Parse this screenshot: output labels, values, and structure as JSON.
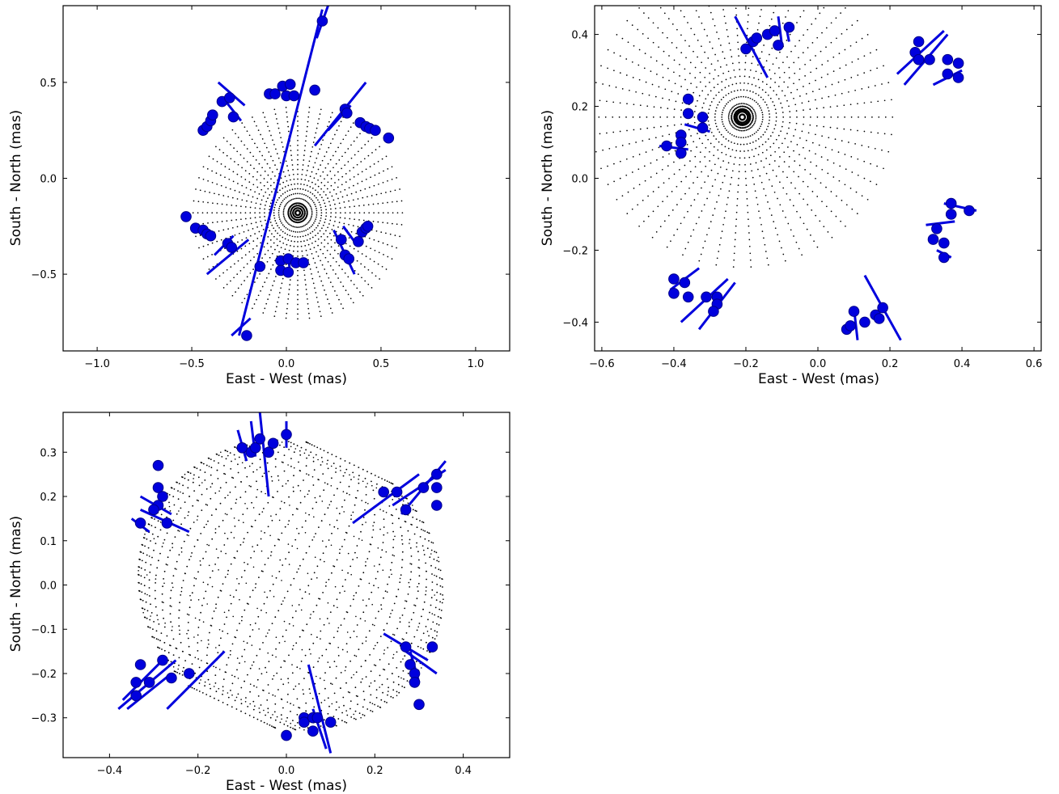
{
  "colors": {
    "observed": "#0000dd",
    "observed_edge": "#00008a",
    "model": "#000000",
    "axes": "#000000"
  },
  "chart_data": [
    {
      "type": "scatter",
      "xlabel": "East - West (mas)",
      "ylabel": "South - North (mas)",
      "xlim": [
        -1.18,
        1.18
      ],
      "ylim": [
        -0.9,
        0.9
      ],
      "xticks": [
        -1.0,
        -0.5,
        0.0,
        0.5,
        1.0
      ],
      "yticks": [
        -0.5,
        0.0,
        0.5
      ],
      "xtick_labels": [
        "−1.0",
        "−0.5",
        "0.0",
        "0.5",
        "1.0"
      ],
      "ytick_labels": [
        "−0.5",
        "0.0",
        "0.5"
      ],
      "grid": false,
      "model_center": [
        0.06,
        -0.18
      ],
      "model_radius": 0.57,
      "model_spokes": 56,
      "model_rings": 12,
      "model_core_radius": 0.05,
      "points": [
        [
          -0.53,
          -0.2
        ],
        [
          -0.48,
          -0.26
        ],
        [
          -0.44,
          -0.27
        ],
        [
          -0.42,
          -0.29
        ],
        [
          -0.4,
          -0.3
        ],
        [
          -0.31,
          -0.34
        ],
        [
          -0.29,
          -0.36
        ],
        [
          -0.44,
          0.25
        ],
        [
          -0.42,
          0.27
        ],
        [
          -0.4,
          0.3
        ],
        [
          -0.39,
          0.33
        ],
        [
          -0.34,
          0.4
        ],
        [
          -0.3,
          0.42
        ],
        [
          -0.28,
          0.32
        ],
        [
          -0.09,
          0.44
        ],
        [
          -0.06,
          0.44
        ],
        [
          -0.02,
          0.48
        ],
        [
          0.0,
          0.43
        ],
        [
          0.02,
          0.49
        ],
        [
          0.04,
          0.43
        ],
        [
          0.15,
          0.46
        ],
        [
          0.19,
          0.82
        ],
        [
          -0.14,
          -0.46
        ],
        [
          -0.21,
          -0.82
        ],
        [
          0.31,
          0.36
        ],
        [
          0.32,
          0.34
        ],
        [
          0.39,
          0.29
        ],
        [
          0.42,
          0.27
        ],
        [
          0.44,
          0.26
        ],
        [
          0.47,
          0.25
        ],
        [
          0.54,
          0.21
        ],
        [
          -0.03,
          -0.43
        ],
        [
          0.01,
          -0.42
        ],
        [
          0.05,
          -0.44
        ],
        [
          0.09,
          -0.44
        ],
        [
          -0.03,
          -0.48
        ],
        [
          0.01,
          -0.49
        ],
        [
          0.29,
          -0.32
        ],
        [
          0.31,
          -0.4
        ],
        [
          0.33,
          -0.42
        ],
        [
          0.38,
          -0.33
        ],
        [
          0.4,
          -0.28
        ],
        [
          0.42,
          -0.26
        ],
        [
          0.43,
          -0.25
        ]
      ],
      "error_bars": [
        [
          -0.36,
          0.5,
          -0.22,
          0.38
        ],
        [
          -0.32,
          0.4,
          -0.24,
          0.3
        ],
        [
          -0.42,
          -0.5,
          -0.2,
          -0.32
        ],
        [
          -0.38,
          -0.4,
          -0.28,
          -0.3
        ],
        [
          -0.25,
          -0.82,
          0.19,
          0.88
        ],
        [
          -0.29,
          -0.82,
          -0.19,
          -0.73
        ],
        [
          0.16,
          0.73,
          0.22,
          0.9
        ],
        [
          0.15,
          0.17,
          0.42,
          0.5
        ],
        [
          0.22,
          0.25,
          0.34,
          0.38
        ],
        [
          0.25,
          -0.27,
          0.36,
          -0.5
        ],
        [
          0.3,
          -0.25,
          0.36,
          -0.33
        ],
        [
          0.01,
          -0.4,
          0.02,
          -0.5
        ]
      ]
    },
    {
      "type": "scatter",
      "xlabel": "East - West (mas)",
      "ylabel": "South - North (mas)",
      "xlim": [
        -0.62,
        0.62
      ],
      "ylim": [
        -0.48,
        0.48
      ],
      "xticks": [
        -0.6,
        -0.4,
        -0.2,
        0.0,
        0.2,
        0.4,
        0.6
      ],
      "yticks": [
        -0.4,
        -0.2,
        0.0,
        0.2,
        0.4
      ],
      "xtick_labels": [
        "−0.6",
        "−0.4",
        "−0.2",
        "0.0",
        "0.2",
        "0.4",
        "0.6"
      ],
      "ytick_labels": [
        "−0.4",
        "−0.2",
        "0.0",
        "0.2",
        "0.4"
      ],
      "grid": false,
      "model_center": [
        -0.21,
        0.17
      ],
      "model_radius": 0.43,
      "model_spokes": 54,
      "model_rings": 14,
      "model_core_radius": 0.03,
      "points": [
        [
          -0.2,
          0.36
        ],
        [
          -0.18,
          0.38
        ],
        [
          -0.17,
          0.39
        ],
        [
          -0.14,
          0.4
        ],
        [
          -0.12,
          0.41
        ],
        [
          -0.11,
          0.37
        ],
        [
          -0.08,
          0.42
        ],
        [
          0.27,
          0.35
        ],
        [
          0.28,
          0.38
        ],
        [
          0.28,
          0.33
        ],
        [
          0.31,
          0.33
        ],
        [
          0.36,
          0.33
        ],
        [
          0.39,
          0.32
        ],
        [
          0.36,
          0.29
        ],
        [
          0.39,
          0.28
        ],
        [
          -0.36,
          0.22
        ],
        [
          -0.36,
          0.18
        ],
        [
          -0.32,
          0.17
        ],
        [
          -0.32,
          0.14
        ],
        [
          -0.38,
          0.12
        ],
        [
          -0.38,
          0.1
        ],
        [
          -0.42,
          0.09
        ],
        [
          -0.38,
          0.07
        ],
        [
          0.37,
          -0.07
        ],
        [
          0.42,
          -0.09
        ],
        [
          0.37,
          -0.1
        ],
        [
          0.33,
          -0.14
        ],
        [
          0.32,
          -0.17
        ],
        [
          0.35,
          -0.18
        ],
        [
          0.35,
          -0.22
        ],
        [
          -0.4,
          -0.28
        ],
        [
          -0.37,
          -0.29
        ],
        [
          -0.4,
          -0.32
        ],
        [
          -0.36,
          -0.33
        ],
        [
          -0.31,
          -0.33
        ],
        [
          -0.28,
          -0.33
        ],
        [
          -0.28,
          -0.35
        ],
        [
          -0.29,
          -0.37
        ],
        [
          0.08,
          -0.42
        ],
        [
          0.09,
          -0.41
        ],
        [
          0.1,
          -0.37
        ],
        [
          0.13,
          -0.4
        ],
        [
          0.16,
          -0.38
        ],
        [
          0.17,
          -0.39
        ],
        [
          0.18,
          -0.36
        ]
      ],
      "error_bars": [
        [
          -0.23,
          0.45,
          -0.14,
          0.28
        ],
        [
          -0.11,
          0.45,
          -0.1,
          0.37
        ],
        [
          -0.09,
          0.43,
          -0.08,
          0.38
        ],
        [
          0.22,
          0.29,
          0.35,
          0.41
        ],
        [
          0.24,
          0.26,
          0.36,
          0.4
        ],
        [
          0.32,
          0.26,
          0.4,
          0.3
        ],
        [
          -0.44,
          0.09,
          -0.36,
          0.08
        ],
        [
          -0.37,
          0.15,
          -0.3,
          0.13
        ],
        [
          0.35,
          -0.07,
          0.44,
          -0.09
        ],
        [
          0.3,
          -0.13,
          0.38,
          -0.12
        ],
        [
          0.33,
          -0.2,
          0.37,
          -0.22
        ],
        [
          -0.41,
          -0.31,
          -0.33,
          -0.25
        ],
        [
          -0.38,
          -0.4,
          -0.25,
          -0.28
        ],
        [
          -0.33,
          -0.42,
          -0.23,
          -0.29
        ],
        [
          0.13,
          -0.27,
          0.23,
          -0.45
        ],
        [
          0.1,
          -0.36,
          0.11,
          -0.45
        ]
      ]
    },
    {
      "type": "scatter",
      "xlabel": "East - West (mas)",
      "ylabel": "South - North (mas)",
      "xlim": [
        -0.505,
        0.505
      ],
      "ylim": [
        -0.39,
        0.39
      ],
      "xticks": [
        -0.4,
        -0.2,
        0.0,
        0.2,
        0.4
      ],
      "yticks": [
        -0.3,
        -0.2,
        -0.1,
        0.0,
        0.1,
        0.2,
        0.3
      ],
      "xtick_labels": [
        "−0.4",
        "−0.2",
        "0.0",
        "0.2",
        "0.4"
      ],
      "ytick_labels": [
        "−0.3",
        "−0.2",
        "−0.1",
        "0.0",
        "0.1",
        "0.2",
        "0.3"
      ],
      "grid": false,
      "model_center": [
        0.01,
        -0.0
      ],
      "model_radius": 0.35,
      "model_spokes": 30,
      "model_rings": 16,
      "model_poles": [
        [
          0.14,
          0.29
        ],
        [
          -0.14,
          -0.29
        ]
      ],
      "points": [
        [
          -0.1,
          0.31
        ],
        [
          -0.08,
          0.3
        ],
        [
          -0.07,
          0.31
        ],
        [
          -0.06,
          0.33
        ],
        [
          -0.04,
          0.3
        ],
        [
          -0.03,
          0.32
        ],
        [
          0.0,
          0.34
        ],
        [
          -0.29,
          0.27
        ],
        [
          -0.29,
          0.22
        ],
        [
          -0.28,
          0.2
        ],
        [
          -0.29,
          0.18
        ],
        [
          -0.3,
          0.17
        ],
        [
          -0.33,
          0.14
        ],
        [
          -0.27,
          0.14
        ],
        [
          0.22,
          0.21
        ],
        [
          0.25,
          0.21
        ],
        [
          0.27,
          0.17
        ],
        [
          0.31,
          0.22
        ],
        [
          0.34,
          0.25
        ],
        [
          0.34,
          0.22
        ],
        [
          0.34,
          0.18
        ],
        [
          -0.33,
          -0.18
        ],
        [
          -0.28,
          -0.17
        ],
        [
          -0.34,
          -0.22
        ],
        [
          -0.31,
          -0.22
        ],
        [
          -0.34,
          -0.25
        ],
        [
          -0.26,
          -0.21
        ],
        [
          -0.22,
          -0.2
        ],
        [
          0.27,
          -0.14
        ],
        [
          0.33,
          -0.14
        ],
        [
          0.28,
          -0.18
        ],
        [
          0.29,
          -0.2
        ],
        [
          0.29,
          -0.22
        ],
        [
          0.3,
          -0.27
        ],
        [
          0.0,
          -0.34
        ],
        [
          0.04,
          -0.3
        ],
        [
          0.04,
          -0.31
        ],
        [
          0.06,
          -0.3
        ],
        [
          0.07,
          -0.3
        ],
        [
          0.1,
          -0.31
        ],
        [
          0.06,
          -0.33
        ]
      ],
      "error_bars": [
        [
          -0.11,
          0.35,
          -0.09,
          0.28
        ],
        [
          -0.06,
          0.39,
          -0.04,
          0.2
        ],
        [
          -0.08,
          0.37,
          -0.07,
          0.29
        ],
        [
          0.0,
          0.37,
          0.0,
          0.31
        ],
        [
          -0.33,
          0.2,
          -0.26,
          0.16
        ],
        [
          -0.33,
          0.17,
          -0.22,
          0.12
        ],
        [
          -0.35,
          0.15,
          -0.31,
          0.12
        ],
        [
          0.15,
          0.14,
          0.3,
          0.25
        ],
        [
          0.24,
          0.18,
          0.36,
          0.26
        ],
        [
          0.26,
          0.16,
          0.36,
          0.28
        ],
        [
          -0.38,
          -0.28,
          -0.25,
          -0.17
        ],
        [
          -0.36,
          -0.28,
          -0.26,
          -0.2
        ],
        [
          -0.27,
          -0.28,
          -0.14,
          -0.15
        ],
        [
          -0.37,
          -0.26,
          -0.28,
          -0.17
        ],
        [
          0.22,
          -0.11,
          0.32,
          -0.17
        ],
        [
          0.27,
          -0.15,
          0.34,
          -0.2
        ],
        [
          0.28,
          -0.15,
          0.3,
          -0.22
        ],
        [
          0.05,
          -0.18,
          0.1,
          -0.38
        ],
        [
          0.06,
          -0.28,
          0.09,
          -0.37
        ]
      ]
    }
  ]
}
